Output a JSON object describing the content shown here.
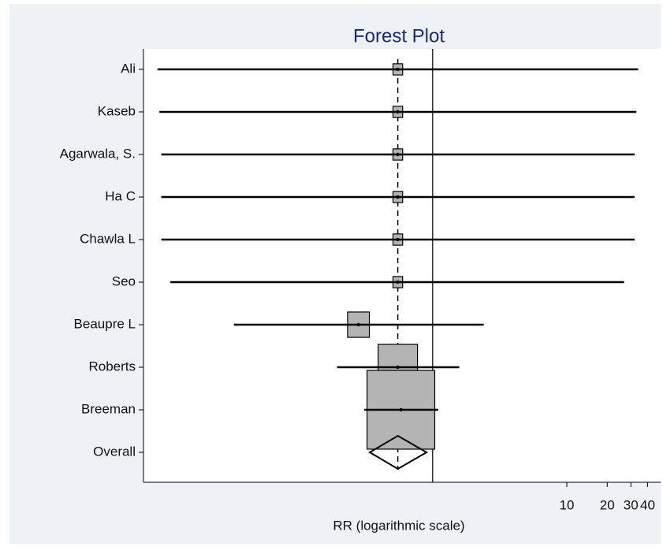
{
  "chart_data": {
    "type": "forest",
    "title": "Forest Plot",
    "xlabel": "RR (logarithmic scale)",
    "categories": [
      "Ali",
      "Kaseb",
      "Agarwala, S.",
      "Ha C",
      "Chawla L",
      "Seo",
      "Beaupre L",
      "Roberts",
      "Breeman"
    ],
    "values": [
      0.55,
      0.55,
      0.55,
      0.55,
      0.55,
      0.55,
      0.28,
      0.55,
      0.58
    ],
    "ci_lower": [
      0.0089,
      0.0092,
      0.0095,
      0.0095,
      0.0095,
      0.0111,
      0.033,
      0.194,
      0.31
    ],
    "ci_upper": [
      34,
      33,
      32,
      32,
      32,
      26.7,
      2.4,
      1.58,
      1.1
    ],
    "weights": [
      1.3,
      1.3,
      1.3,
      1.3,
      1.3,
      1.3,
      6.6,
      21.6,
      63.9
    ],
    "overall": {
      "label": "Overall",
      "value": 0.55,
      "lower": 0.34,
      "upper": 0.9
    },
    "null_line": 1,
    "xscale": "log",
    "xlim": [
      0.007,
      50
    ],
    "xticks": [
      10,
      20,
      30,
      40
    ],
    "box_color": "#b4b4b4",
    "title_color": "#1a2a6c"
  }
}
